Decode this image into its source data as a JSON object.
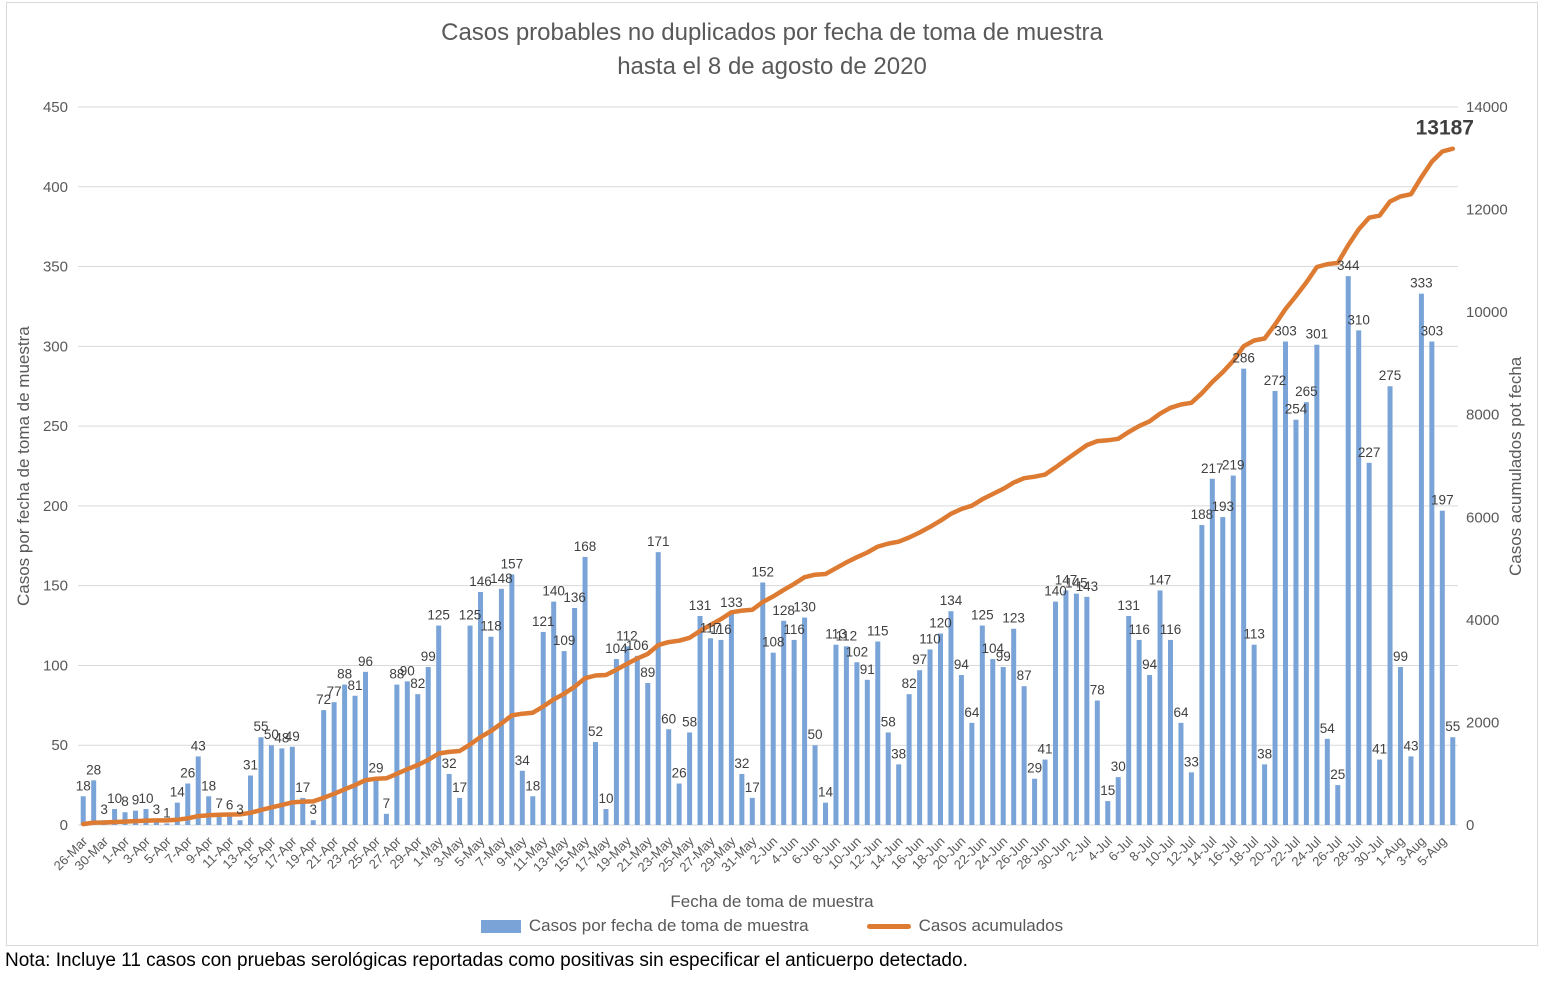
{
  "title": {
    "line1": "Casos probables no duplicados por fecha de toma de muestra",
    "line2": "hasta el  8 de agosto de 2020"
  },
  "note": "Nota: Incluye 11 casos con pruebas serológicas reportadas como positivas sin especificar el anticuerpo detectado.",
  "legend": {
    "bars_label": "Casos por fecha de toma de muestra",
    "line_label": "Casos acumulados"
  },
  "colors": {
    "bar": "#7aa4d8",
    "line": "#dd7b33",
    "grid": "#d9d9d9",
    "axis_text": "#595959",
    "label_text": "#404040",
    "end_label_text": "#3f3f3f"
  },
  "chart_data": {
    "type": "bar",
    "subtype": "combo-bar-plus-cumulative-line",
    "title": "Casos probables no duplicados por fecha de toma de muestra hasta el  8 de agosto de 2020",
    "xlabel": "Fecha de toma de muestra",
    "left_axis": {
      "title": "Casos por fecha de toma de muestra",
      "min": 0,
      "max": 450,
      "step": 50
    },
    "right_axis": {
      "title": "Casos acumulados pot fecha",
      "min": 0,
      "max": 14000,
      "step": 2000
    },
    "grid": true,
    "legend_position": "bottom",
    "tick_every_n_bars": 2,
    "x_tick_labels": [
      "26-Mar",
      "30-Mar",
      "1-Apr",
      "3-Apr",
      "5-Apr",
      "7-Apr",
      "9-Apr",
      "11-Apr",
      "13-Apr",
      "15-Apr",
      "17-Apr",
      "19-Apr",
      "21-Apr",
      "23-Apr",
      "25-Apr",
      "27-Apr",
      "29-Apr",
      "1-May",
      "3-May",
      "5-May",
      "7-May",
      "9-May",
      "11-May",
      "13-May",
      "15-May",
      "17-May",
      "19-May",
      "21-May",
      "23-May",
      "25-May",
      "27-May",
      "29-May",
      "31-May",
      "2-Jun",
      "4-Jun",
      "6-Jun",
      "8-Jun",
      "10-Jun",
      "12-Jun",
      "14-Jun",
      "16-Jun",
      "18-Jun",
      "20-Jun",
      "22-Jun",
      "24-Jun",
      "26-Jun",
      "28-Jun",
      "30-Jun",
      "2-Jul",
      "4-Jul",
      "6-Jul",
      "8-Jul",
      "10-Jul",
      "12-Jul",
      "14-Jul",
      "16-Jul",
      "18-Jul",
      "20-Jul",
      "22-Jul",
      "24-Jul",
      "26-Jul",
      "28-Jul",
      "30-Jul",
      "1-Aug",
      "3-Aug",
      "5-Aug"
    ],
    "series": [
      {
        "name": "Casos por fecha de toma de muestra",
        "type": "bar",
        "axis": "left",
        "values": [
          18,
          28,
          3,
          10,
          8,
          9,
          10,
          3,
          1,
          14,
          26,
          43,
          18,
          7,
          6,
          3,
          31,
          55,
          50,
          48,
          49,
          17,
          3,
          72,
          77,
          88,
          81,
          96,
          29,
          7,
          88,
          90,
          82,
          99,
          125,
          32,
          17,
          125,
          146,
          118,
          148,
          157,
          34,
          18,
          121,
          140,
          109,
          136,
          168,
          52,
          10,
          104,
          112,
          106,
          89,
          171,
          60,
          26,
          58,
          131,
          117,
          116,
          133,
          32,
          17,
          152,
          108,
          128,
          116,
          130,
          50,
          14,
          113,
          112,
          102,
          91,
          115,
          58,
          38,
          82,
          97,
          110,
          120,
          134,
          94,
          64,
          125,
          104,
          99,
          123,
          87,
          29,
          41,
          140,
          147,
          145,
          143,
          78,
          15,
          30,
          131,
          116,
          94,
          147,
          116,
          64,
          33,
          188,
          217,
          193,
          219,
          286,
          113,
          38,
          272,
          303,
          254,
          265,
          301,
          54,
          25,
          344,
          310,
          227,
          41,
          275,
          99,
          43,
          333,
          303,
          197,
          55
        ]
      },
      {
        "name": "Casos acumulados",
        "type": "line",
        "axis": "right",
        "cumulative_of_bar_series": true,
        "final_value": 13187,
        "end_label": "13187"
      }
    ]
  }
}
